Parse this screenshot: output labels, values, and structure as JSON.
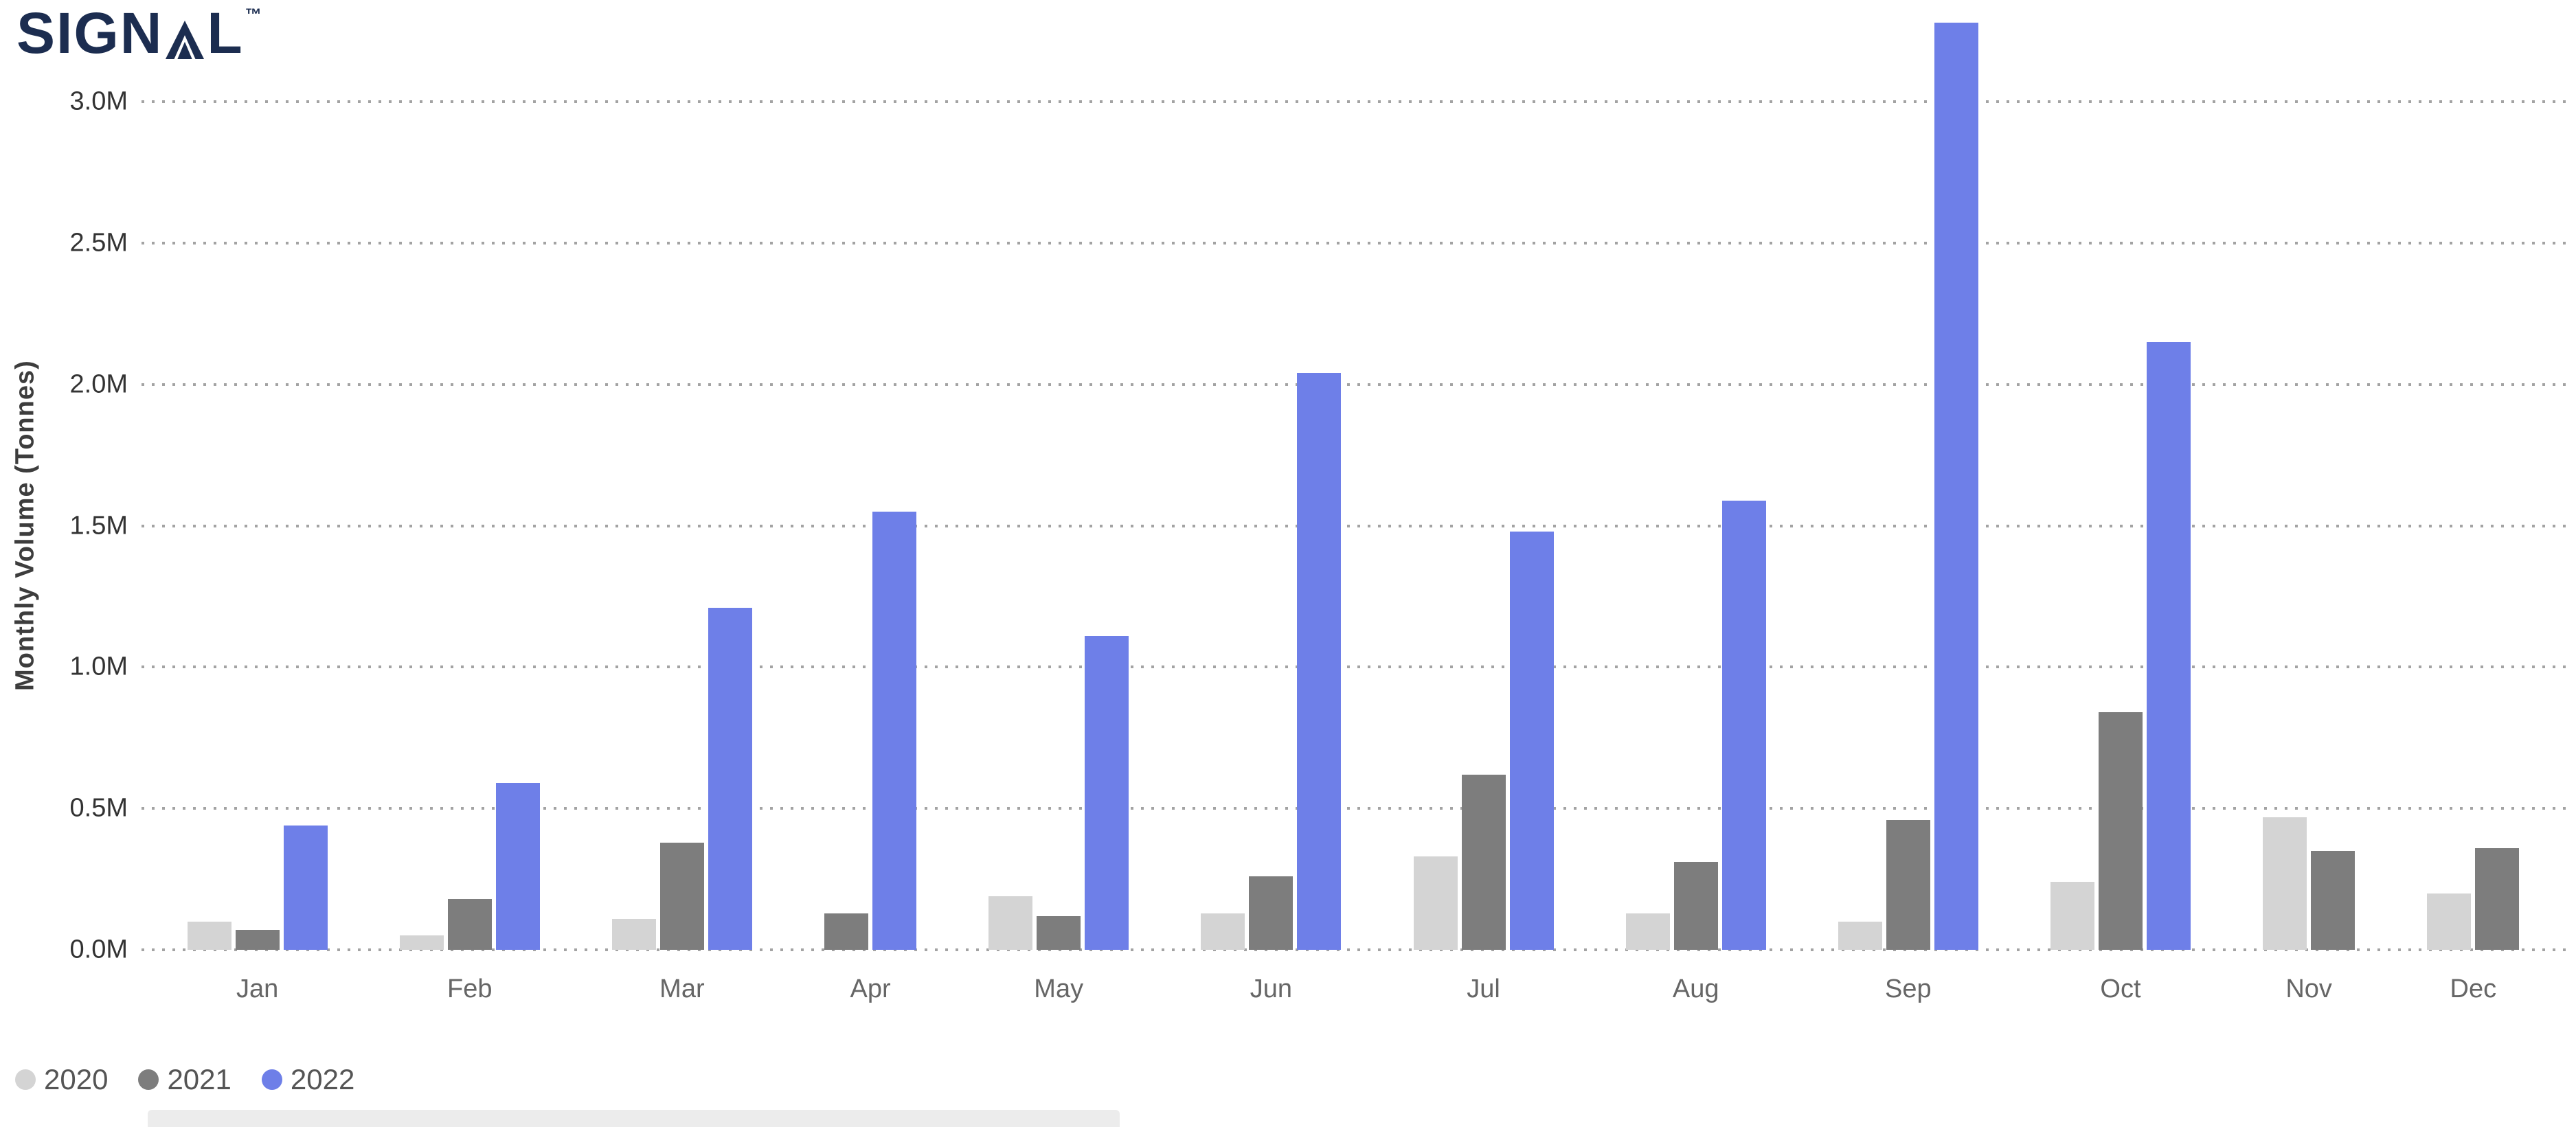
{
  "logo": {
    "text_before_glyph": "SIGN",
    "glyph": "stylized-A",
    "text_after_glyph": "L",
    "trademark": "™"
  },
  "colors": {
    "logo": "#1c2d50",
    "grid": "#a3a3a3",
    "axis_text": "#333333",
    "month_text": "#666666",
    "legend_text": "#555555"
  },
  "chart_data": {
    "type": "bar",
    "title": "",
    "xlabel": "",
    "ylabel": "Monthly Volume (Tonnes)",
    "categories": [
      "Jan",
      "Feb",
      "Mar",
      "Apr",
      "May",
      "Jun",
      "Jul",
      "Aug",
      "Sep",
      "Oct",
      "Nov",
      "Dec"
    ],
    "series": [
      {
        "name": "2020",
        "color": "#d4d4d4",
        "values": [
          0.1,
          0.05,
          0.11,
          0,
          0.19,
          0.13,
          0.33,
          0.13,
          0.1,
          0.24,
          0.47,
          0.2
        ]
      },
      {
        "name": "2021",
        "color": "#7d7d7d",
        "values": [
          0.07,
          0.18,
          0.38,
          0.13,
          0.12,
          0.26,
          0.62,
          0.31,
          0.46,
          0.84,
          0.35,
          0.36
        ]
      },
      {
        "name": "2022",
        "color": "#6e7fe8",
        "values": [
          0.44,
          0.59,
          1.21,
          1.55,
          1.11,
          2.04,
          1.48,
          1.59,
          3.28,
          2.15,
          0,
          0
        ]
      }
    ],
    "y_ticks": [
      "0.0M",
      "0.5M",
      "1.0M",
      "1.5M",
      "2.0M",
      "2.5M",
      "3.0M"
    ],
    "y_tick_values": [
      0,
      0.5,
      1.0,
      1.5,
      2.0,
      2.5,
      3.0
    ],
    "ylim": [
      0,
      3.28
    ],
    "grid": "dotted horizontal",
    "legend_position": "bottom-left"
  }
}
